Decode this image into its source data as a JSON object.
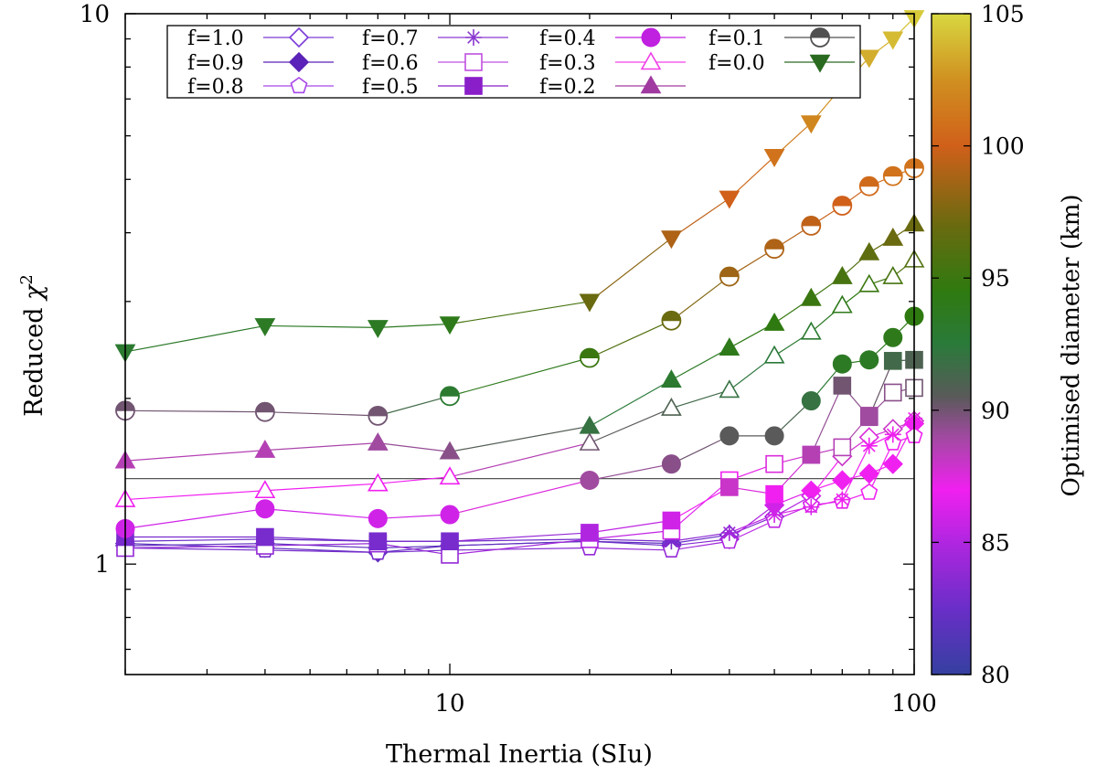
{
  "chart_data": {
    "type": "line",
    "xscale": "log",
    "yscale": "log",
    "xlabel": "Thermal Inertia (SIu)",
    "ylabel_prefix": "Reduced ",
    "ylabel_symbol": "χ",
    "ylabel_sup": "2",
    "xlim": [
      2,
      100
    ],
    "ylim": [
      0.63,
      10
    ],
    "x_ticks": [
      {
        "value": 10,
        "label": "10"
      },
      {
        "value": 100,
        "label": "100"
      }
    ],
    "y_ticks": [
      {
        "value": 1,
        "label": "1"
      },
      {
        "value": 10,
        "label": "10"
      }
    ],
    "reference_line": {
      "y": 1.43
    },
    "colorbar": {
      "label": "Optimised diameter (km)",
      "range": [
        80,
        105
      ],
      "ticks": [
        "80",
        "85",
        "90",
        "95",
        "100",
        "105"
      ],
      "stops": [
        {
          "v": 80,
          "color": "#3540a0"
        },
        {
          "v": 82.5,
          "color": "#6a2ec8"
        },
        {
          "v": 85,
          "color": "#b026e0"
        },
        {
          "v": 87,
          "color": "#f020f0"
        },
        {
          "v": 89,
          "color": "#a04aa0"
        },
        {
          "v": 90.5,
          "color": "#5a5a5a"
        },
        {
          "v": 92.5,
          "color": "#2a7a3a"
        },
        {
          "v": 94.5,
          "color": "#2f7a10"
        },
        {
          "v": 97,
          "color": "#6a6a10"
        },
        {
          "v": 100,
          "color": "#d0601a"
        },
        {
          "v": 102.5,
          "color": "#d09020"
        },
        {
          "v": 105,
          "color": "#d8d840"
        }
      ]
    },
    "legend": {
      "placement": "top-left inside",
      "entries": [
        {
          "label": "f=1.0",
          "marker": "diamond-open",
          "color": "#7a3ad8"
        },
        {
          "label": "f=0.9",
          "marker": "diamond-filled",
          "color": "#5a22b8"
        },
        {
          "label": "f=0.8",
          "marker": "pentagon-open",
          "color": "#a848e8"
        },
        {
          "label": "f=0.7",
          "marker": "star",
          "color": "#8a3ad0"
        },
        {
          "label": "f=0.6",
          "marker": "square-open",
          "color": "#c050e0"
        },
        {
          "label": "f=0.5",
          "marker": "square-filled",
          "color": "#8a1ec8"
        },
        {
          "label": "f=0.4",
          "marker": "circle-filled",
          "color": "#c020e0"
        },
        {
          "label": "f=0.3",
          "marker": "triangle-open",
          "color": "#f040e8"
        },
        {
          "label": "f=0.2",
          "marker": "triangle-filled",
          "color": "#a03aa0"
        },
        {
          "label": "f=0.1",
          "marker": "circle-half",
          "color": "#505050"
        },
        {
          "label": "f=0.0",
          "marker": "triangle-down-filled",
          "color": "#2a6a20"
        }
      ]
    },
    "x": [
      2,
      4,
      7,
      10,
      20,
      30,
      40,
      50,
      60,
      70,
      80,
      90,
      100
    ],
    "series": [
      {
        "name": "f=1.0",
        "marker": "diamond-open",
        "values": [
          1.08,
          1.09,
          1.07,
          1.08,
          1.1,
          1.09,
          1.13,
          1.22,
          1.33,
          1.57,
          1.7,
          1.76,
          1.82
        ],
        "diam": [
          82,
          82,
          82,
          82,
          82,
          82,
          83,
          84,
          86,
          88,
          87.5,
          88,
          88
        ]
      },
      {
        "name": "f=0.9",
        "marker": "diamond-filled",
        "values": [
          1.09,
          1.07,
          1.05,
          1.08,
          1.1,
          1.08,
          1.11,
          1.28,
          1.36,
          1.42,
          1.46,
          1.52,
          1.8
        ],
        "diam": [
          82,
          82,
          82,
          82,
          82,
          83,
          84,
          86,
          87,
          87,
          87,
          87,
          87
        ]
      },
      {
        "name": "f=0.8",
        "marker": "pentagon-open",
        "values": [
          1.07,
          1.06,
          1.05,
          1.06,
          1.07,
          1.06,
          1.1,
          1.2,
          1.28,
          1.3,
          1.35,
          1.66,
          1.71
        ],
        "diam": [
          83,
          83,
          83,
          83,
          84,
          84,
          85,
          85.5,
          86,
          86.5,
          87,
          87,
          87
        ]
      },
      {
        "name": "f=0.7",
        "marker": "star",
        "values": [
          1.1,
          1.11,
          1.1,
          1.1,
          1.11,
          1.1,
          1.14,
          1.23,
          1.27,
          1.31,
          1.64,
          1.72,
          1.84
        ],
        "diam": [
          82.5,
          82.5,
          82.5,
          82.5,
          83,
          83,
          84.5,
          86,
          86.5,
          87,
          87,
          87,
          87
        ]
      },
      {
        "name": "f=0.6",
        "marker": "square-open",
        "values": [
          1.07,
          1.08,
          1.09,
          1.04,
          1.11,
          1.15,
          1.42,
          1.52,
          1.58,
          1.63,
          1.86,
          2.05,
          2.09
        ],
        "diam": [
          84,
          84,
          84,
          84,
          85,
          86,
          87,
          87.5,
          88,
          88.5,
          89,
          89.5,
          90
        ]
      },
      {
        "name": "f=0.5",
        "marker": "square-filled",
        "values": [
          1.12,
          1.12,
          1.1,
          1.1,
          1.14,
          1.2,
          1.38,
          1.34,
          1.58,
          2.11,
          1.85,
          2.34,
          2.35
        ],
        "diam": [
          83,
          83,
          83,
          83,
          85,
          86,
          88,
          87,
          88.5,
          90,
          89,
          91.5,
          91
        ]
      },
      {
        "name": "f=0.4",
        "marker": "circle-filled",
        "values": [
          1.16,
          1.26,
          1.21,
          1.23,
          1.42,
          1.52,
          1.71,
          1.71,
          1.98,
          2.31,
          2.35,
          2.58,
          2.82
        ],
        "diam": [
          86,
          86,
          86,
          86,
          89,
          89.5,
          90.5,
          90.5,
          92,
          93.5,
          93.5,
          94,
          94.5
        ]
      },
      {
        "name": "f=0.3",
        "marker": "triangle-open",
        "values": [
          1.31,
          1.36,
          1.4,
          1.44,
          1.66,
          1.92,
          2.07,
          2.39,
          2.64,
          2.95,
          3.22,
          3.33,
          3.57
        ],
        "diam": [
          87,
          87,
          87,
          87,
          90,
          91,
          92,
          92.5,
          93,
          94,
          95,
          95.5,
          96
        ]
      },
      {
        "name": "f=0.2",
        "marker": "triangle-filled",
        "values": [
          1.54,
          1.61,
          1.66,
          1.6,
          1.78,
          2.16,
          2.47,
          2.74,
          3.04,
          3.33,
          3.68,
          3.91,
          4.15
        ],
        "diam": [
          88.5,
          88.5,
          89,
          89.5,
          92,
          93,
          94,
          94.5,
          95,
          95.5,
          96.5,
          97,
          97
        ]
      },
      {
        "name": "f=0.1",
        "marker": "circle-half",
        "values": [
          1.9,
          1.89,
          1.86,
          2.02,
          2.37,
          2.77,
          3.33,
          3.74,
          4.12,
          4.48,
          4.86,
          5.07,
          5.24
        ],
        "diam": [
          90,
          90,
          90,
          93,
          95,
          97,
          98.5,
          99,
          99.5,
          100,
          100.5,
          101,
          101
        ]
      },
      {
        "name": "f=0.0",
        "marker": "triangle-down-filled",
        "values": [
          2.43,
          2.71,
          2.69,
          2.73,
          3.0,
          3.91,
          4.62,
          5.5,
          6.33,
          7.38,
          8.33,
          8.99,
          9.83
        ],
        "diam": [
          93,
          93.5,
          93.5,
          94,
          97,
          99,
          100,
          101,
          102,
          103,
          103.5,
          104,
          104.5
        ]
      }
    ]
  }
}
